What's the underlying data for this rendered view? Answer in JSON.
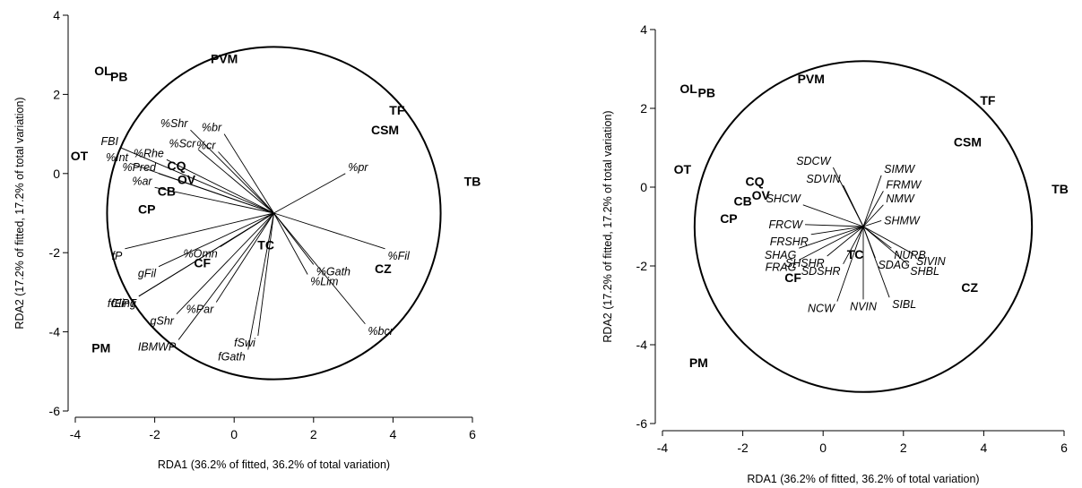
{
  "chart_data": [
    {
      "type": "scatter",
      "title": "",
      "xlabel": "RDA1 (36.2% of fitted, 36.2% of total variation)",
      "ylabel": "RDA2 (17.2% of fitted, 17.2% of total variation)",
      "xlim": [
        -4,
        6
      ],
      "ylim": [
        -6,
        4
      ],
      "xticks": [
        "-4",
        "-2",
        "0",
        "2",
        "4",
        "6"
      ],
      "yticks": [
        "-6",
        "-4",
        "-2",
        "0",
        "2",
        "4"
      ],
      "correlation_circle": {
        "center": [
          1,
          -1
        ],
        "radius": 4.2
      },
      "vector_origin": [
        1,
        -1
      ],
      "sites": [
        {
          "label": "OL",
          "x": -3.3,
          "y": 2.6
        },
        {
          "label": "PB",
          "x": -2.9,
          "y": 2.45
        },
        {
          "label": "PVM",
          "x": -0.25,
          "y": 2.9
        },
        {
          "label": "TF",
          "x": 4.1,
          "y": 1.6
        },
        {
          "label": "CSM",
          "x": 3.8,
          "y": 1.1
        },
        {
          "label": "TB",
          "x": 6.0,
          "y": -0.2
        },
        {
          "label": "OT",
          "x": -3.9,
          "y": 0.45
        },
        {
          "label": "CQ",
          "x": -1.45,
          "y": 0.2
        },
        {
          "label": "OV",
          "x": -1.2,
          "y": -0.15
        },
        {
          "label": "CB",
          "x": -1.7,
          "y": -0.45
        },
        {
          "label": "CP",
          "x": -2.2,
          "y": -0.9
        },
        {
          "label": "TC",
          "x": 0.8,
          "y": -1.8
        },
        {
          "label": "CF",
          "x": -0.8,
          "y": -2.25
        },
        {
          "label": "CZ",
          "x": 3.75,
          "y": -2.4
        },
        {
          "label": "PM",
          "x": -3.35,
          "y": -4.4
        }
      ],
      "vectors": [
        {
          "label": "%Shr",
          "x": -1.1,
          "y": 1.1
        },
        {
          "label": "%br",
          "x": -0.25,
          "y": 1.0
        },
        {
          "label": "%Scr",
          "x": -0.9,
          "y": 0.6
        },
        {
          "label": "%cr",
          "x": -0.4,
          "y": 0.55
        },
        {
          "label": "FBI",
          "x": -2.85,
          "y": 0.65
        },
        {
          "label": "%Rhe",
          "x": -1.7,
          "y": 0.35
        },
        {
          "label": "%Int",
          "x": -2.6,
          "y": 0.25
        },
        {
          "label": "%Pred",
          "x": -1.9,
          "y": 0.0
        },
        {
          "label": "%ar",
          "x": -2.0,
          "y": -0.35
        },
        {
          "label": "%pr",
          "x": 2.8,
          "y": 0.0
        },
        {
          "label": "%Fil",
          "x": 3.8,
          "y": -1.9
        },
        {
          "label": "%Gath",
          "x": 2.0,
          "y": -2.3
        },
        {
          "label": "%Lim",
          "x": 1.85,
          "y": -2.55
        },
        {
          "label": "%bcr",
          "x": 3.3,
          "y": -3.8
        },
        {
          "label": "%Omn",
          "x": -0.35,
          "y": -1.85
        },
        {
          "label": "%Par",
          "x": -0.45,
          "y": -3.25
        },
        {
          "label": "fSwi",
          "x": 0.6,
          "y": -4.1
        },
        {
          "label": "fGath",
          "x": 0.35,
          "y": -4.45
        },
        {
          "label": "fP",
          "x": -2.75,
          "y": -1.9
        },
        {
          "label": "gFil",
          "x": -1.9,
          "y": -2.35
        },
        {
          "label": "fCling",
          "x": -2.4,
          "y": -3.1
        },
        {
          "label": "fEPT",
          "x": -2.4,
          "y": -3.1
        },
        {
          "label": "gShr",
          "x": -1.45,
          "y": -3.55
        },
        {
          "label": "IBMWP",
          "x": -1.4,
          "y": -4.2
        }
      ]
    },
    {
      "type": "scatter",
      "title": "",
      "xlabel": "RDA1 (36.2% of fitted, 36.2% of total variation)",
      "ylabel": "RDA2 (17.2% of fitted, 17.2% of total variation)",
      "xlim": [
        -4,
        6
      ],
      "ylim": [
        -6,
        4
      ],
      "xticks": [
        "-4",
        "-2",
        "0",
        "2",
        "4",
        "6"
      ],
      "yticks": [
        "-6",
        "-4",
        "-2",
        "0",
        "2",
        "4"
      ],
      "correlation_circle": {
        "center": [
          1,
          -1
        ],
        "radius": 4.2
      },
      "vector_origin": [
        1,
        -1
      ],
      "sites": [
        {
          "label": "OL",
          "x": -3.35,
          "y": 2.5
        },
        {
          "label": "PB",
          "x": -2.9,
          "y": 2.4
        },
        {
          "label": "PVM",
          "x": -0.3,
          "y": 2.75
        },
        {
          "label": "TF",
          "x": 4.1,
          "y": 2.2
        },
        {
          "label": "CSM",
          "x": 3.6,
          "y": 1.15
        },
        {
          "label": "TB",
          "x": 5.9,
          "y": -0.05
        },
        {
          "label": "OT",
          "x": -3.5,
          "y": 0.45
        },
        {
          "label": "CQ",
          "x": -1.7,
          "y": 0.15
        },
        {
          "label": "OV",
          "x": -1.55,
          "y": -0.2
        },
        {
          "label": "CB",
          "x": -2.0,
          "y": -0.35
        },
        {
          "label": "CP",
          "x": -2.35,
          "y": -0.8
        },
        {
          "label": "TC",
          "x": 0.8,
          "y": -1.7
        },
        {
          "label": "CF",
          "x": -0.75,
          "y": -2.3
        },
        {
          "label": "CZ",
          "x": 3.65,
          "y": -2.55
        },
        {
          "label": "PM",
          "x": -3.1,
          "y": -4.45
        }
      ],
      "vectors": [
        {
          "label": "SDCW",
          "x": 0.25,
          "y": 0.5
        },
        {
          "label": "SDVIN",
          "x": 0.5,
          "y": 0.05
        },
        {
          "label": "SIMW",
          "x": 1.45,
          "y": 0.3
        },
        {
          "label": "FRMW",
          "x": 1.5,
          "y": -0.1
        },
        {
          "label": "NMW",
          "x": 1.5,
          "y": -0.45
        },
        {
          "label": "SHMW",
          "x": 1.45,
          "y": -0.85
        },
        {
          "label": "SHCW",
          "x": -0.5,
          "y": -0.45
        },
        {
          "label": "FRCW",
          "x": -0.45,
          "y": -0.95
        },
        {
          "label": "FRSHR",
          "x": -0.3,
          "y": -1.2
        },
        {
          "label": "SHAG",
          "x": -0.6,
          "y": -1.55
        },
        {
          "label": "SHSHR",
          "x": 0.1,
          "y": -1.75
        },
        {
          "label": "FRAG",
          "x": -0.6,
          "y": -1.85
        },
        {
          "label": "NURB",
          "x": 1.7,
          "y": -1.55
        },
        {
          "label": "SIVIN",
          "x": 2.25,
          "y": -1.7
        },
        {
          "label": "SDAG",
          "x": 1.3,
          "y": -1.8
        },
        {
          "label": "SHBL",
          "x": 2.1,
          "y": -1.95
        },
        {
          "label": "SDSHR",
          "x": 0.5,
          "y": -1.95
        },
        {
          "label": "NCW",
          "x": 0.35,
          "y": -2.9
        },
        {
          "label": "NVIN",
          "x": 1.0,
          "y": -2.85
        },
        {
          "label": "SIBL",
          "x": 1.65,
          "y": -2.8
        }
      ]
    }
  ]
}
